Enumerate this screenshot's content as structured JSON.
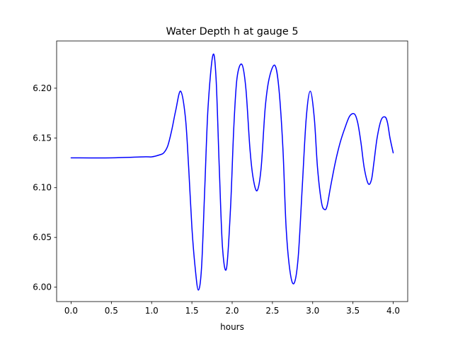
{
  "chart_data": {
    "type": "line",
    "title": "Water Depth h at gauge 5",
    "xlabel": "hours",
    "ylabel": "",
    "xlim": [
      -0.18,
      4.18
    ],
    "ylim": [
      5.9855,
      6.2475
    ],
    "xticks": [
      0.0,
      0.5,
      1.0,
      1.5,
      2.0,
      2.5,
      3.0,
      3.5,
      4.0
    ],
    "xtick_labels": [
      "0.0",
      "0.5",
      "1.0",
      "1.5",
      "2.0",
      "2.5",
      "3.0",
      "3.5",
      "4.0"
    ],
    "yticks": [
      6.0,
      6.05,
      6.1,
      6.15,
      6.2
    ],
    "ytick_labels": [
      "6.00",
      "6.05",
      "6.10",
      "6.15",
      "6.20"
    ],
    "grid": false,
    "series": [
      {
        "color": "#0000ff",
        "x": [
          0.0,
          0.5,
          0.9,
          1.0,
          1.1,
          1.15,
          1.2,
          1.25,
          1.3,
          1.36,
          1.42,
          1.46,
          1.5,
          1.54,
          1.58,
          1.62,
          1.66,
          1.7,
          1.76,
          1.8,
          1.84,
          1.88,
          1.93,
          1.98,
          2.02,
          2.06,
          2.12,
          2.17,
          2.22,
          2.26,
          2.31,
          2.36,
          2.41,
          2.46,
          2.53,
          2.58,
          2.63,
          2.67,
          2.72,
          2.77,
          2.82,
          2.87,
          2.92,
          2.97,
          3.02,
          3.06,
          3.11,
          3.15,
          3.18,
          3.22,
          3.28,
          3.34,
          3.4,
          3.46,
          3.52,
          3.56,
          3.6,
          3.64,
          3.69,
          3.73,
          3.76,
          3.8,
          3.85,
          3.9,
          3.93,
          3.96,
          4.0
        ],
        "y": [
          6.13,
          6.13,
          6.131,
          6.131,
          6.133,
          6.135,
          6.142,
          6.158,
          6.178,
          6.197,
          6.17,
          6.12,
          6.06,
          6.02,
          5.997,
          6.02,
          6.1,
          6.18,
          6.233,
          6.21,
          6.12,
          6.04,
          6.019,
          6.08,
          6.16,
          6.21,
          6.224,
          6.2,
          6.14,
          6.11,
          6.097,
          6.12,
          6.18,
          6.21,
          6.223,
          6.2,
          6.14,
          6.06,
          6.015,
          6.004,
          6.03,
          6.1,
          6.17,
          6.197,
          6.17,
          6.12,
          6.085,
          6.078,
          6.082,
          6.1,
          6.125,
          6.145,
          6.16,
          6.172,
          6.174,
          6.165,
          6.145,
          6.12,
          6.104,
          6.108,
          6.125,
          6.15,
          6.168,
          6.171,
          6.165,
          6.15,
          6.135
        ]
      }
    ]
  }
}
